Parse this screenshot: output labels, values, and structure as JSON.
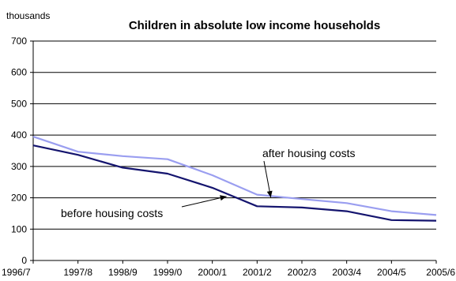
{
  "chart_data": {
    "type": "line",
    "title": "Children in absolute low income households",
    "ylabel": "thousands",
    "xlabel": "",
    "categories": [
      "1996/7",
      "1997/8",
      "1998/9",
      "1999/0",
      "2000/1",
      "2001/2",
      "2002/3",
      "2003/4",
      "2004/5",
      "2005/6"
    ],
    "ylim": [
      0,
      700
    ],
    "yticks": [
      0,
      100,
      200,
      300,
      400,
      500,
      600,
      700
    ],
    "grid": true,
    "legend": "none",
    "series": [
      {
        "name": "after housing costs",
        "values": [
          395,
          347,
          333,
          323,
          272,
          210,
          196,
          183,
          157,
          145
        ],
        "color": "#9a9ef0"
      },
      {
        "name": "before housing costs",
        "values": [
          367,
          337,
          296,
          277,
          232,
          173,
          169,
          157,
          129,
          127
        ],
        "color": "#14146e"
      }
    ],
    "annotations": [
      {
        "text": "after housing costs",
        "series_index": 0,
        "point_x": 5.27
      },
      {
        "text": "before housing costs",
        "series_index": 1,
        "point_x": 4.3
      }
    ]
  }
}
